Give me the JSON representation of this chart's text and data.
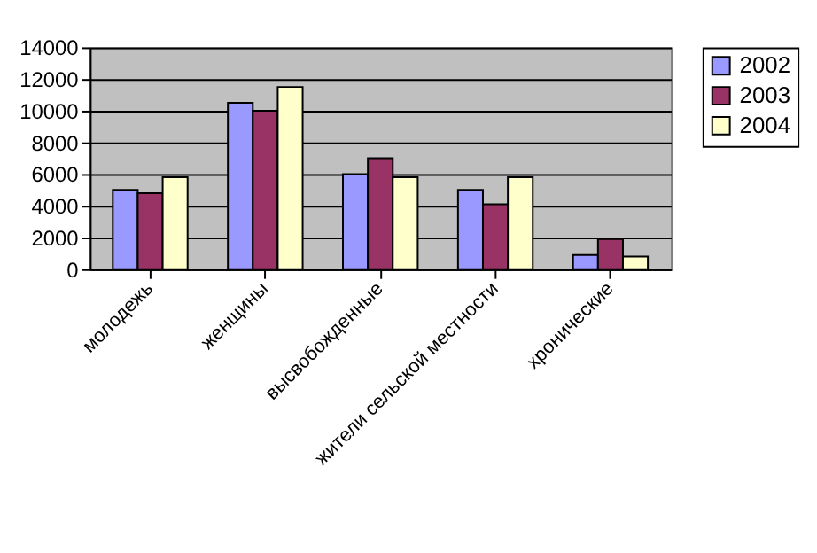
{
  "chart_data": {
    "type": "bar",
    "categories": [
      "молодежь",
      "женщины",
      "высвобожденные",
      "жители сельской местности",
      "хронические"
    ],
    "series": [
      {
        "name": "2002",
        "color": "#9999ff",
        "values": [
          5000,
          10500,
          6000,
          5000,
          900
        ]
      },
      {
        "name": "2003",
        "color": "#993366",
        "values": [
          4800,
          10000,
          7000,
          4100,
          1900
        ]
      },
      {
        "name": "2004",
        "color": "#ffffcc",
        "values": [
          5800,
          11500,
          5800,
          5800,
          800
        ]
      }
    ],
    "ylim": [
      0,
      14000
    ],
    "yticks": [
      0,
      2000,
      4000,
      6000,
      8000,
      10000,
      12000,
      14000
    ],
    "grid": "y",
    "legend": "right"
  }
}
